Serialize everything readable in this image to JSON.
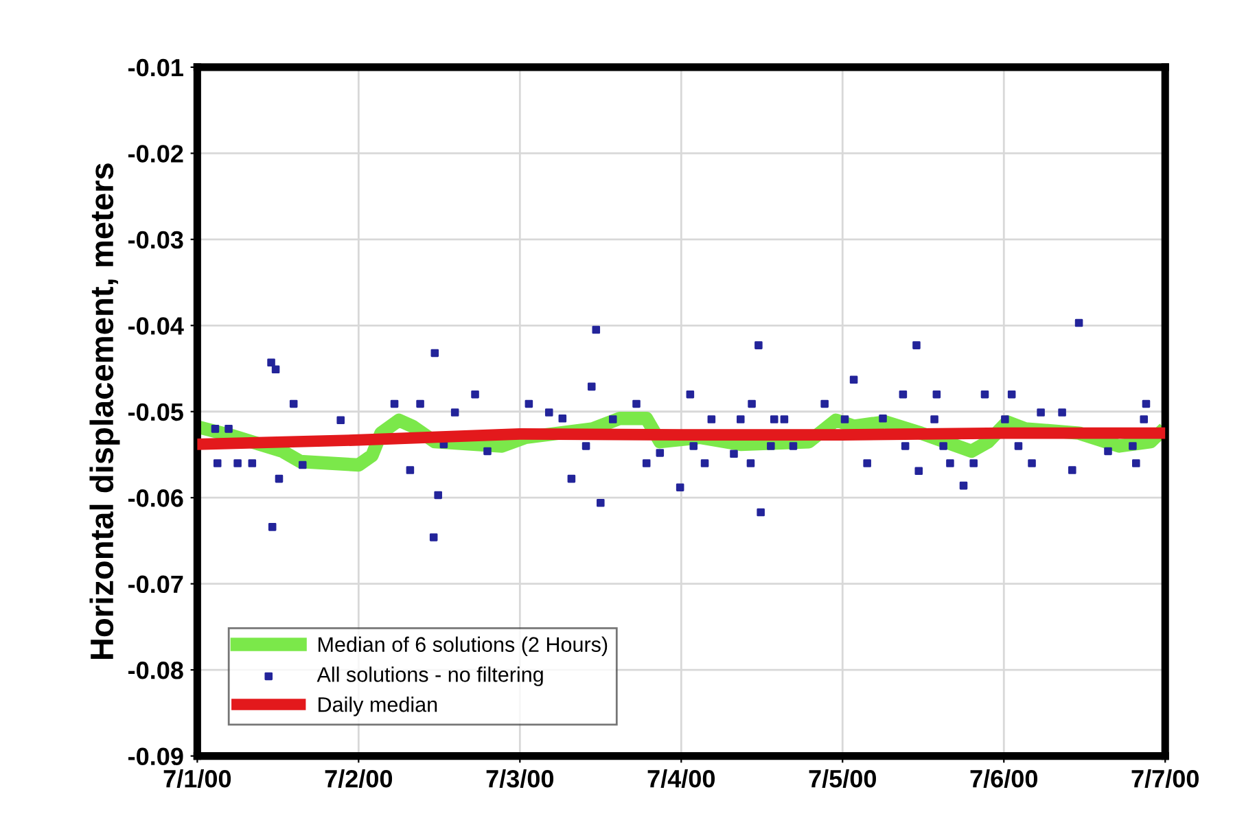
{
  "chart_data": {
    "type": "line",
    "ylabel": "Horizontal displacement, meters",
    "xlim": [
      "2000-07-01",
      "2000-07-07"
    ],
    "xticks": [
      {
        "value": "2000-07-01",
        "label": "7/1/00"
      },
      {
        "value": "2000-07-02",
        "label": "7/2/00"
      },
      {
        "value": "2000-07-03",
        "label": "7/3/00"
      },
      {
        "value": "2000-07-04",
        "label": "7/4/00"
      },
      {
        "value": "2000-07-05",
        "label": "7/5/00"
      },
      {
        "value": "2000-07-06",
        "label": "7/6/00"
      },
      {
        "value": "2000-07-07",
        "label": "7/7/00"
      }
    ],
    "ylim": [
      -0.09,
      -0.01
    ],
    "yticks": [
      -0.09,
      -0.08,
      -0.07,
      -0.06,
      -0.05,
      -0.04,
      -0.03,
      -0.02,
      -0.01
    ],
    "grid": true,
    "legend": "bottom left",
    "series": [
      {
        "name": "Median of 6 solutions (2 Hours)",
        "color": "#7be84a",
        "x": [
          "2000-07-01T01:10",
          "2000-07-01T05:10",
          "2000-07-01T12:40",
          "2000-07-01T15:20",
          "2000-07-02T00:00",
          "2000-07-02T02:00",
          "2000-07-02T03:20",
          "2000-07-02T06:00",
          "2000-07-02T08:00",
          "2000-07-02T11:20",
          "2000-07-02T21:20",
          "2000-07-03T00:50",
          "2000-07-03T10:50",
          "2000-07-03T14:50",
          "2000-07-03T18:50",
          "2000-07-03T20:50",
          "2000-07-04T02:50",
          "2000-07-04T08:50",
          "2000-07-04T19:00",
          "2000-07-04T23:00",
          "2000-07-05T01:40",
          "2000-07-05T06:20",
          "2000-07-05T11:40",
          "2000-07-05T19:10",
          "2000-07-05T21:40",
          "2000-07-06T00:30",
          "2000-07-06T03:10",
          "2000-07-06T11:10",
          "2000-07-06T17:10",
          "2000-07-06T21:50",
          "2000-07-06T23:10"
        ],
        "values": [
          -0.052,
          -0.0528,
          -0.0546,
          -0.0558,
          -0.0562,
          -0.0551,
          -0.0525,
          -0.051,
          -0.0517,
          -0.0535,
          -0.054,
          -0.053,
          -0.052,
          -0.0508,
          -0.0508,
          -0.0535,
          -0.053,
          -0.0538,
          -0.0535,
          -0.051,
          -0.0517,
          -0.0512,
          -0.0525,
          -0.0546,
          -0.0535,
          -0.0512,
          -0.052,
          -0.0525,
          -0.054,
          -0.0535,
          -0.0525
        ]
      },
      {
        "name": "All solutions - no filtering",
        "type": "scatter",
        "color": "#23249a",
        "marker": "square",
        "x": [
          "2000-07-01T02:40",
          "2000-07-01T04:40",
          "2000-07-01T03:00",
          "2000-07-01T06:00",
          "2000-07-01T08:10",
          "2000-07-01T11:00",
          "2000-07-01T11:40",
          "2000-07-01T14:20",
          "2000-07-01T12:10",
          "2000-07-01T11:10",
          "2000-07-01T15:40",
          "2000-07-01T21:20",
          "2000-07-02T05:20",
          "2000-07-02T09:10",
          "2000-07-02T11:20",
          "2000-07-02T07:40",
          "2000-07-02T11:50",
          "2000-07-02T11:10",
          "2000-07-02T14:20",
          "2000-07-02T17:20",
          "2000-07-02T12:40",
          "2000-07-02T19:10",
          "2000-07-03T01:20",
          "2000-07-03T04:20",
          "2000-07-03T06:20",
          "2000-07-03T07:40",
          "2000-07-03T11:20",
          "2000-07-03T10:40",
          "2000-07-03T09:50",
          "2000-07-03T12:00",
          "2000-07-03T13:50",
          "2000-07-03T17:20",
          "2000-07-03T18:50",
          "2000-07-03T20:50",
          "2000-07-03T23:50",
          "2000-07-04T01:20",
          "2000-07-04T01:50",
          "2000-07-04T03:30",
          "2000-07-04T04:30",
          "2000-07-04T07:50",
          "2000-07-04T08:50",
          "2000-07-04T10:30",
          "2000-07-04T10:20",
          "2000-07-04T11:30",
          "2000-07-04T11:50",
          "2000-07-04T13:50",
          "2000-07-04T15:20",
          "2000-07-04T13:20",
          "2000-07-04T16:40",
          "2000-07-04T21:20",
          "2000-07-05T00:20",
          "2000-07-05T01:40",
          "2000-07-05T03:40",
          "2000-07-05T06:00",
          "2000-07-05T09:00",
          "2000-07-05T09:20",
          "2000-07-05T11:00",
          "2000-07-05T11:20",
          "2000-07-05T14:00",
          "2000-07-05T13:40",
          "2000-07-05T15:00",
          "2000-07-05T16:00",
          "2000-07-05T18:00",
          "2000-07-05T19:30",
          "2000-07-05T21:10",
          "2000-07-06T00:10",
          "2000-07-06T01:10",
          "2000-07-06T02:10",
          "2000-07-06T04:10",
          "2000-07-06T05:30",
          "2000-07-06T08:40",
          "2000-07-06T10:10",
          "2000-07-06T11:10",
          "2000-07-06T15:30",
          "2000-07-06T19:10",
          "2000-07-06T19:40",
          "2000-07-06T20:50",
          "2000-07-06T21:10"
        ],
        "values": [
          -0.052,
          -0.052,
          -0.056,
          -0.056,
          -0.056,
          -0.0443,
          -0.0451,
          -0.0491,
          -0.0578,
          -0.0634,
          -0.0562,
          -0.051,
          -0.0491,
          -0.0491,
          -0.0432,
          -0.0568,
          -0.0597,
          -0.0646,
          -0.0501,
          -0.048,
          -0.0538,
          -0.0546,
          -0.0491,
          -0.0501,
          -0.0508,
          -0.0578,
          -0.0405,
          -0.0471,
          -0.054,
          -0.0606,
          -0.0509,
          -0.0491,
          -0.056,
          -0.0548,
          -0.0588,
          -0.048,
          -0.054,
          -0.056,
          -0.0509,
          -0.0549,
          -0.0509,
          -0.0491,
          -0.056,
          -0.0423,
          -0.0617,
          -0.0509,
          -0.0509,
          -0.054,
          -0.054,
          -0.0491,
          -0.0509,
          -0.0463,
          -0.056,
          -0.0508,
          -0.048,
          -0.054,
          -0.0423,
          -0.0569,
          -0.048,
          -0.0509,
          -0.054,
          -0.056,
          -0.0586,
          -0.056,
          -0.048,
          -0.0509,
          -0.048,
          -0.054,
          -0.056,
          -0.0501,
          -0.0501,
          -0.0568,
          -0.0397,
          -0.0546,
          -0.054,
          -0.056,
          -0.0509,
          -0.0491
        ]
      },
      {
        "name": "Daily median",
        "color": "#e3191c",
        "x": [
          "2000-07-01",
          "2000-07-02",
          "2000-07-03",
          "2000-07-04",
          "2000-07-05",
          "2000-07-06",
          "2000-07-07"
        ],
        "values": [
          -0.0538,
          -0.0533,
          -0.0526,
          -0.0527,
          -0.0527,
          -0.0525,
          -0.0525
        ]
      }
    ]
  }
}
